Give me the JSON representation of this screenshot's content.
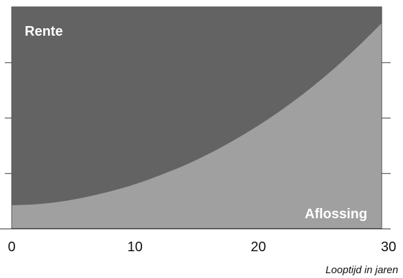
{
  "chart_data": {
    "type": "area",
    "stacked": true,
    "normalized": true,
    "xlabel": "Looptijd in jaren",
    "ylabel": "",
    "xlim": [
      0,
      30
    ],
    "ylim": [
      0,
      1
    ],
    "x_ticks": [
      0,
      10,
      20,
      30
    ],
    "y_ticks": [
      0.25,
      0.5,
      0.75
    ],
    "grid": false,
    "series": [
      {
        "name": "Aflossing",
        "color": "#a0a0a0",
        "x": [
          0,
          2,
          4,
          6,
          8,
          10,
          12,
          14,
          16,
          18,
          20,
          22,
          24,
          26,
          28,
          29.7
        ],
        "values": [
          0.105,
          0.11,
          0.122,
          0.142,
          0.168,
          0.2,
          0.24,
          0.285,
          0.338,
          0.398,
          0.465,
          0.54,
          0.623,
          0.715,
          0.817,
          0.91
        ]
      },
      {
        "name": "Rente",
        "color": "#636363",
        "x": [
          0,
          2,
          4,
          6,
          8,
          10,
          12,
          14,
          16,
          18,
          20,
          22,
          24,
          26,
          28,
          29.7
        ],
        "values": [
          0.895,
          0.89,
          0.878,
          0.858,
          0.832,
          0.8,
          0.76,
          0.715,
          0.662,
          0.602,
          0.535,
          0.46,
          0.377,
          0.285,
          0.183,
          0.09
        ]
      }
    ]
  }
}
